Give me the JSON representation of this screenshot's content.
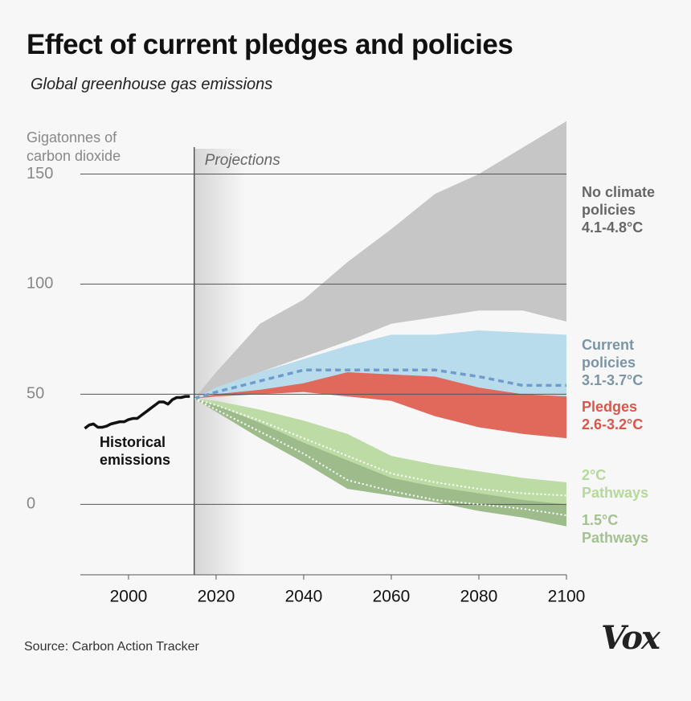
{
  "chart_data": {
    "type": "area",
    "title": "Effect of current pledges and policies",
    "subtitle": "Global greenhouse gas emissions",
    "y_axis_label": "Gigatonnes of carbon dioxide",
    "annotation": "Projections",
    "projection_start": 2015,
    "source": "Source: Carbon Action Tracker",
    "brand": "Vox",
    "xlim": [
      1989,
      2100
    ],
    "xticks": [
      2000,
      2020,
      2040,
      2060,
      2080,
      2100
    ],
    "ylim": [
      -32,
      175
    ],
    "yticks": [
      0,
      50,
      100,
      150
    ],
    "grid": true,
    "historical": {
      "name": "Historical emissions",
      "color": "#111111",
      "x": [
        1990,
        1991,
        1992,
        1993,
        1994,
        1995,
        1996,
        1997,
        1998,
        1999,
        2000,
        2001,
        2002,
        2003,
        2004,
        2005,
        2006,
        2007,
        2008,
        2009,
        2010,
        2011,
        2012,
        2013,
        2014
      ],
      "values": [
        34.5,
        36,
        36.5,
        35,
        35,
        35.5,
        36.5,
        37,
        37.5,
        37.5,
        38.5,
        39,
        39,
        40.5,
        42,
        43.5,
        45,
        46.5,
        46.5,
        45.5,
        47.5,
        48.5,
        48.5,
        49,
        49
      ]
    },
    "x": [
      2015,
      2020,
      2030,
      2040,
      2050,
      2060,
      2070,
      2080,
      2090,
      2100
    ],
    "series": [
      {
        "name": "No climate policies 4.1-4.8°C",
        "color": "#c6c6c6",
        "label_color": "#666666",
        "high": [
          48,
          60,
          82,
          93,
          110,
          125,
          141,
          150,
          162,
          174
        ],
        "low": [
          48,
          53,
          60,
          67,
          74,
          82,
          85,
          88,
          88,
          83
        ]
      },
      {
        "name": "Current policies 3.1-3.7°C",
        "color": "#b9dcec",
        "label_color": "#7a95a5",
        "high": [
          48,
          53,
          60,
          66,
          72,
          77,
          77,
          79,
          78,
          77
        ],
        "low": [
          48,
          49,
          51,
          52,
          54,
          56,
          55,
          52,
          50,
          49
        ],
        "median": [
          48,
          51,
          56,
          61,
          61,
          61,
          61,
          58,
          54,
          54
        ],
        "median_color": "#6f9ccc"
      },
      {
        "name": "2°C Pathways",
        "color": "#bddba4",
        "label_color": "#b5d99a",
        "high": [
          48,
          47,
          43,
          38,
          32,
          22,
          18,
          15,
          12,
          10
        ],
        "low": [
          48,
          44,
          34,
          24,
          14,
          8,
          5,
          3,
          1,
          0
        ],
        "median": [
          48,
          45,
          38,
          30,
          22,
          14,
          10,
          7,
          5,
          4
        ],
        "median_color": "#ffffff"
      },
      {
        "name": "1.5°C Pathways",
        "color": "#9ebc8b",
        "label_color": "#a3c28f",
        "high": [
          48,
          45,
          37,
          28,
          20,
          12,
          8,
          5,
          2,
          0
        ],
        "low": [
          48,
          42,
          30,
          19,
          7,
          4,
          1,
          -3,
          -6,
          -10
        ],
        "median": [
          48,
          43,
          33,
          23,
          11,
          6,
          2,
          0,
          -2,
          -5
        ],
        "median_color": "#ffffff"
      },
      {
        "name": "Pledges 2.6-3.2°C",
        "color": "#e0695c",
        "label_color": "#d9574a",
        "high": [
          48,
          50,
          52,
          55,
          60,
          59,
          58,
          53,
          50,
          49
        ],
        "low": [
          48,
          49,
          50,
          51,
          49,
          47,
          40,
          35,
          32,
          30
        ]
      }
    ]
  }
}
